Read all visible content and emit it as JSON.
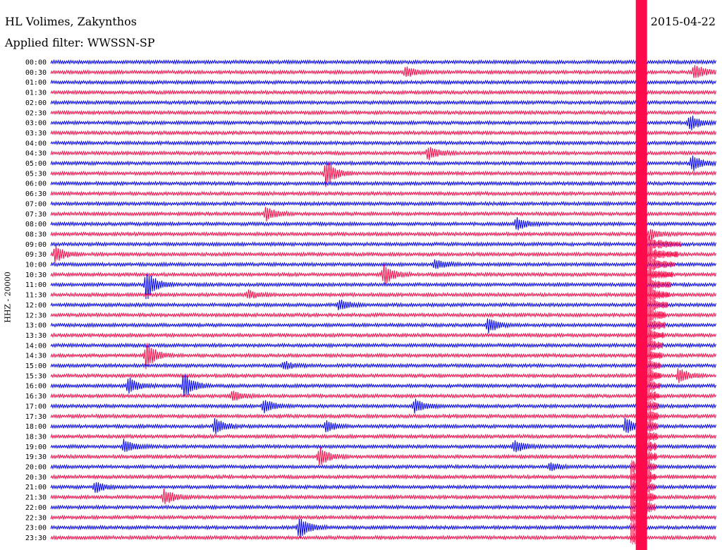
{
  "header": {
    "station": "HL Volimes, Zakynthos",
    "filter_label": "Applied filter: WWSSN-SP",
    "date": "2015-04-22",
    "channel_label": "HHZ - 20000"
  },
  "colors": {
    "trace_a": "#0000ff",
    "trace_b": "#ff0a4a"
  },
  "chart_data": {
    "type": "line",
    "title": "HL Volimes, Zakynthos",
    "subtitle": "Applied filter: WWSSN-SP",
    "ylabel": "HHZ - 20000",
    "xlabel": "",
    "grid": false,
    "time_labels": [
      "00:00",
      "00:30",
      "01:00",
      "01:30",
      "02:00",
      "02:30",
      "03:00",
      "03:30",
      "04:00",
      "04:30",
      "05:00",
      "05:30",
      "06:00",
      "06:30",
      "07:00",
      "07:30",
      "08:00",
      "08:30",
      "09:00",
      "09:30",
      "10:00",
      "10:30",
      "11:00",
      "11:30",
      "12:00",
      "12:30",
      "13:00",
      "13:30",
      "14:00",
      "14:30",
      "15:00",
      "15:30",
      "16:00",
      "16:30",
      "17:00",
      "17:30",
      "18:00",
      "18:30",
      "19:00",
      "19:30",
      "20:00",
      "20:30",
      "21:00",
      "21:30",
      "22:00",
      "22:30",
      "23:00",
      "23:30"
    ],
    "trace_minutes": 30,
    "events": [
      {
        "row": 1,
        "minute": 16,
        "amp": 2
      },
      {
        "row": 1,
        "minute": 29,
        "amp": 3
      },
      {
        "row": 6,
        "minute": 28.8,
        "amp": 3
      },
      {
        "row": 9,
        "minute": 17,
        "amp": 2.5
      },
      {
        "row": 10,
        "minute": 28.9,
        "amp": 3
      },
      {
        "row": 11,
        "minute": 12.4,
        "amp": 5
      },
      {
        "row": 15,
        "minute": 9.7,
        "amp": 2.5
      },
      {
        "row": 16,
        "minute": 21,
        "amp": 2.5
      },
      {
        "row": 17,
        "minute": 27,
        "amp": 2
      },
      {
        "row": 19,
        "minute": 0.2,
        "amp": 3
      },
      {
        "row": 20,
        "minute": 17.3,
        "amp": 2
      },
      {
        "row": 21,
        "minute": 15,
        "amp": 4
      },
      {
        "row": 22,
        "minute": 4.3,
        "amp": 6
      },
      {
        "row": 23,
        "minute": 8.9,
        "amp": 1.5
      },
      {
        "row": 24,
        "minute": 13,
        "amp": 2
      },
      {
        "row": 26,
        "minute": 19.7,
        "amp": 3
      },
      {
        "row": 29,
        "minute": 4.3,
        "amp": 5
      },
      {
        "row": 30,
        "minute": 10.5,
        "amp": 1.5
      },
      {
        "row": 31,
        "minute": 28.3,
        "amp": 3
      },
      {
        "row": 32,
        "minute": 3.5,
        "amp": 3
      },
      {
        "row": 32,
        "minute": 6,
        "amp": 5
      },
      {
        "row": 33,
        "minute": 8.2,
        "amp": 2
      },
      {
        "row": 34,
        "minute": 9.6,
        "amp": 2.5
      },
      {
        "row": 34,
        "minute": 16.4,
        "amp": 2.5
      },
      {
        "row": 36,
        "minute": 7.4,
        "amp": 3
      },
      {
        "row": 36,
        "minute": 12.4,
        "amp": 2
      },
      {
        "row": 36,
        "minute": 25.9,
        "amp": 3
      },
      {
        "row": 38,
        "minute": 3.3,
        "amp": 2.5
      },
      {
        "row": 38,
        "minute": 20.9,
        "amp": 2.5
      },
      {
        "row": 39,
        "minute": 12.1,
        "amp": 3.5
      },
      {
        "row": 40,
        "minute": 22.5,
        "amp": 1.5
      },
      {
        "row": 42,
        "minute": 2,
        "amp": 2
      },
      {
        "row": 43,
        "minute": 5.1,
        "amp": 3
      },
      {
        "row": 46,
        "minute": 11.2,
        "amp": 4
      }
    ],
    "mainshock": {
      "start_row": 0,
      "start_minute": 26.4,
      "max_row": 47,
      "duration_minutes": 0.5,
      "saturated_to_row": 47,
      "coda_until_row": 44
    }
  }
}
